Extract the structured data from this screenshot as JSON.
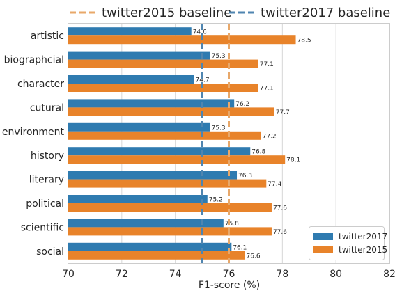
{
  "chart_data": {
    "type": "bar",
    "orientation": "horizontal",
    "categories": [
      "artistic",
      "biographcial",
      "character",
      "cutural",
      "environment",
      "history",
      "literary",
      "political",
      "scientific",
      "social"
    ],
    "series": [
      {
        "name": "twitter2017",
        "color": "#2f7bb0",
        "values": [
          74.6,
          75.3,
          74.7,
          76.2,
          75.3,
          76.8,
          76.3,
          75.2,
          75.8,
          76.1
        ]
      },
      {
        "name": "twitter2015",
        "color": "#e8832a",
        "values": [
          78.5,
          77.1,
          77.1,
          77.7,
          77.2,
          78.1,
          77.4,
          77.6,
          77.6,
          76.6
        ]
      }
    ],
    "baselines": [
      {
        "name": "twitter2015 baseline",
        "color": "#e8a86a",
        "value": 76.0
      },
      {
        "name": "twitter2017 baseline",
        "color": "#4f85b0",
        "value": 75.0
      }
    ],
    "xlabel": "F1-score (%)",
    "xlim": [
      70,
      82
    ],
    "xticks": [
      "70",
      "72",
      "74",
      "76",
      "78",
      "80",
      "82"
    ],
    "grid": "x",
    "legend_position": "lower right"
  }
}
